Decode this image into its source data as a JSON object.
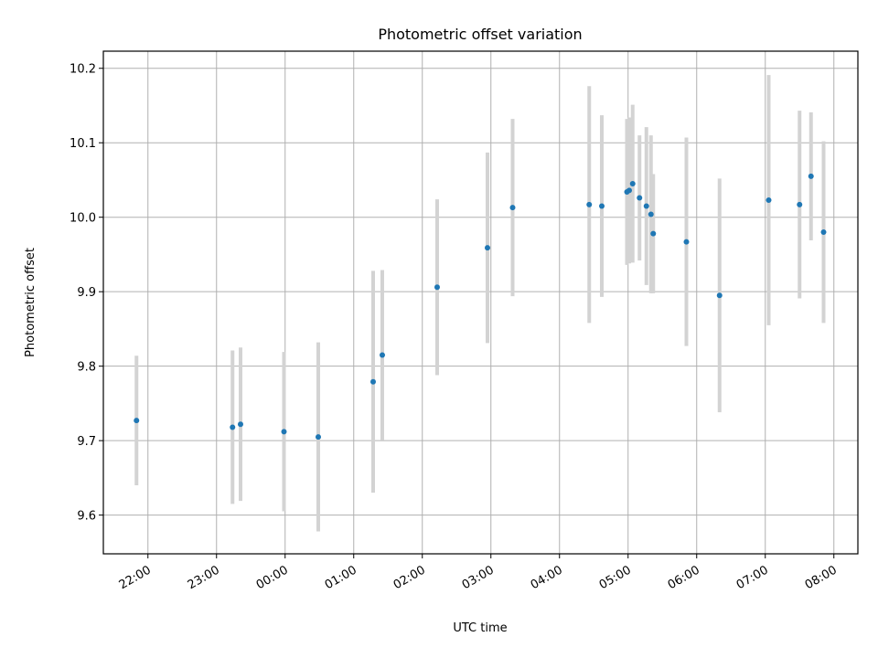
{
  "chart_data": {
    "type": "scatter",
    "title": "Photometric offset variation",
    "xlabel": "UTC time",
    "ylabel": "Photometric offset",
    "ylim": [
      9.548,
      10.223
    ],
    "xlim": [
      "21:21",
      "08:21"
    ],
    "grid": true,
    "x_tick_labels": [
      "22:00",
      "23:00",
      "00:00",
      "01:00",
      "02:00",
      "03:00",
      "04:00",
      "05:00",
      "06:00",
      "07:00",
      "08:00"
    ],
    "y_tick_labels": [
      "9.6",
      "9.7",
      "9.8",
      "9.9",
      "10.0",
      "10.1",
      "10.2"
    ],
    "y_ticks": [
      9.6,
      9.7,
      9.8,
      9.9,
      10.0,
      10.1,
      10.2
    ],
    "colors": {
      "points": "#1f77b4",
      "error_bars": "#d3d3d3"
    },
    "points": [
      {
        "x": "21:50",
        "y": 9.727,
        "err": 0.087
      },
      {
        "x": "23:14",
        "y": 9.718,
        "err": 0.103
      },
      {
        "x": "23:21",
        "y": 9.722,
        "err": 0.103
      },
      {
        "x": "23:59",
        "y": 9.712,
        "err": 0.107
      },
      {
        "x": "00:29",
        "y": 9.705,
        "err": 0.127
      },
      {
        "x": "01:17",
        "y": 9.779,
        "err": 0.149
      },
      {
        "x": "01:25",
        "y": 9.815,
        "err": 0.114
      },
      {
        "x": "02:13",
        "y": 9.906,
        "err": 0.118
      },
      {
        "x": "02:57",
        "y": 9.959,
        "err": 0.128
      },
      {
        "x": "03:19",
        "y": 10.013,
        "err": 0.119
      },
      {
        "x": "04:26",
        "y": 10.017,
        "err": 0.159
      },
      {
        "x": "04:37",
        "y": 10.015,
        "err": 0.122
      },
      {
        "x": "04:59",
        "y": 10.034,
        "err": 0.098
      },
      {
        "x": "05:01",
        "y": 10.036,
        "err": 0.098
      },
      {
        "x": "05:04",
        "y": 10.045,
        "err": 0.106
      },
      {
        "x": "05:10",
        "y": 10.026,
        "err": 0.084
      },
      {
        "x": "05:16",
        "y": 10.015,
        "err": 0.106
      },
      {
        "x": "05:20",
        "y": 10.004,
        "err": 0.106
      },
      {
        "x": "05:22",
        "y": 9.978,
        "err": 0.08
      },
      {
        "x": "05:51",
        "y": 9.967,
        "err": 0.14
      },
      {
        "x": "06:20",
        "y": 9.895,
        "err": 0.157
      },
      {
        "x": "07:03",
        "y": 10.023,
        "err": 0.168
      },
      {
        "x": "07:30",
        "y": 10.017,
        "err": 0.126
      },
      {
        "x": "07:40",
        "y": 10.055,
        "err": 0.086
      },
      {
        "x": "07:51",
        "y": 9.98,
        "err": 0.122
      }
    ]
  }
}
